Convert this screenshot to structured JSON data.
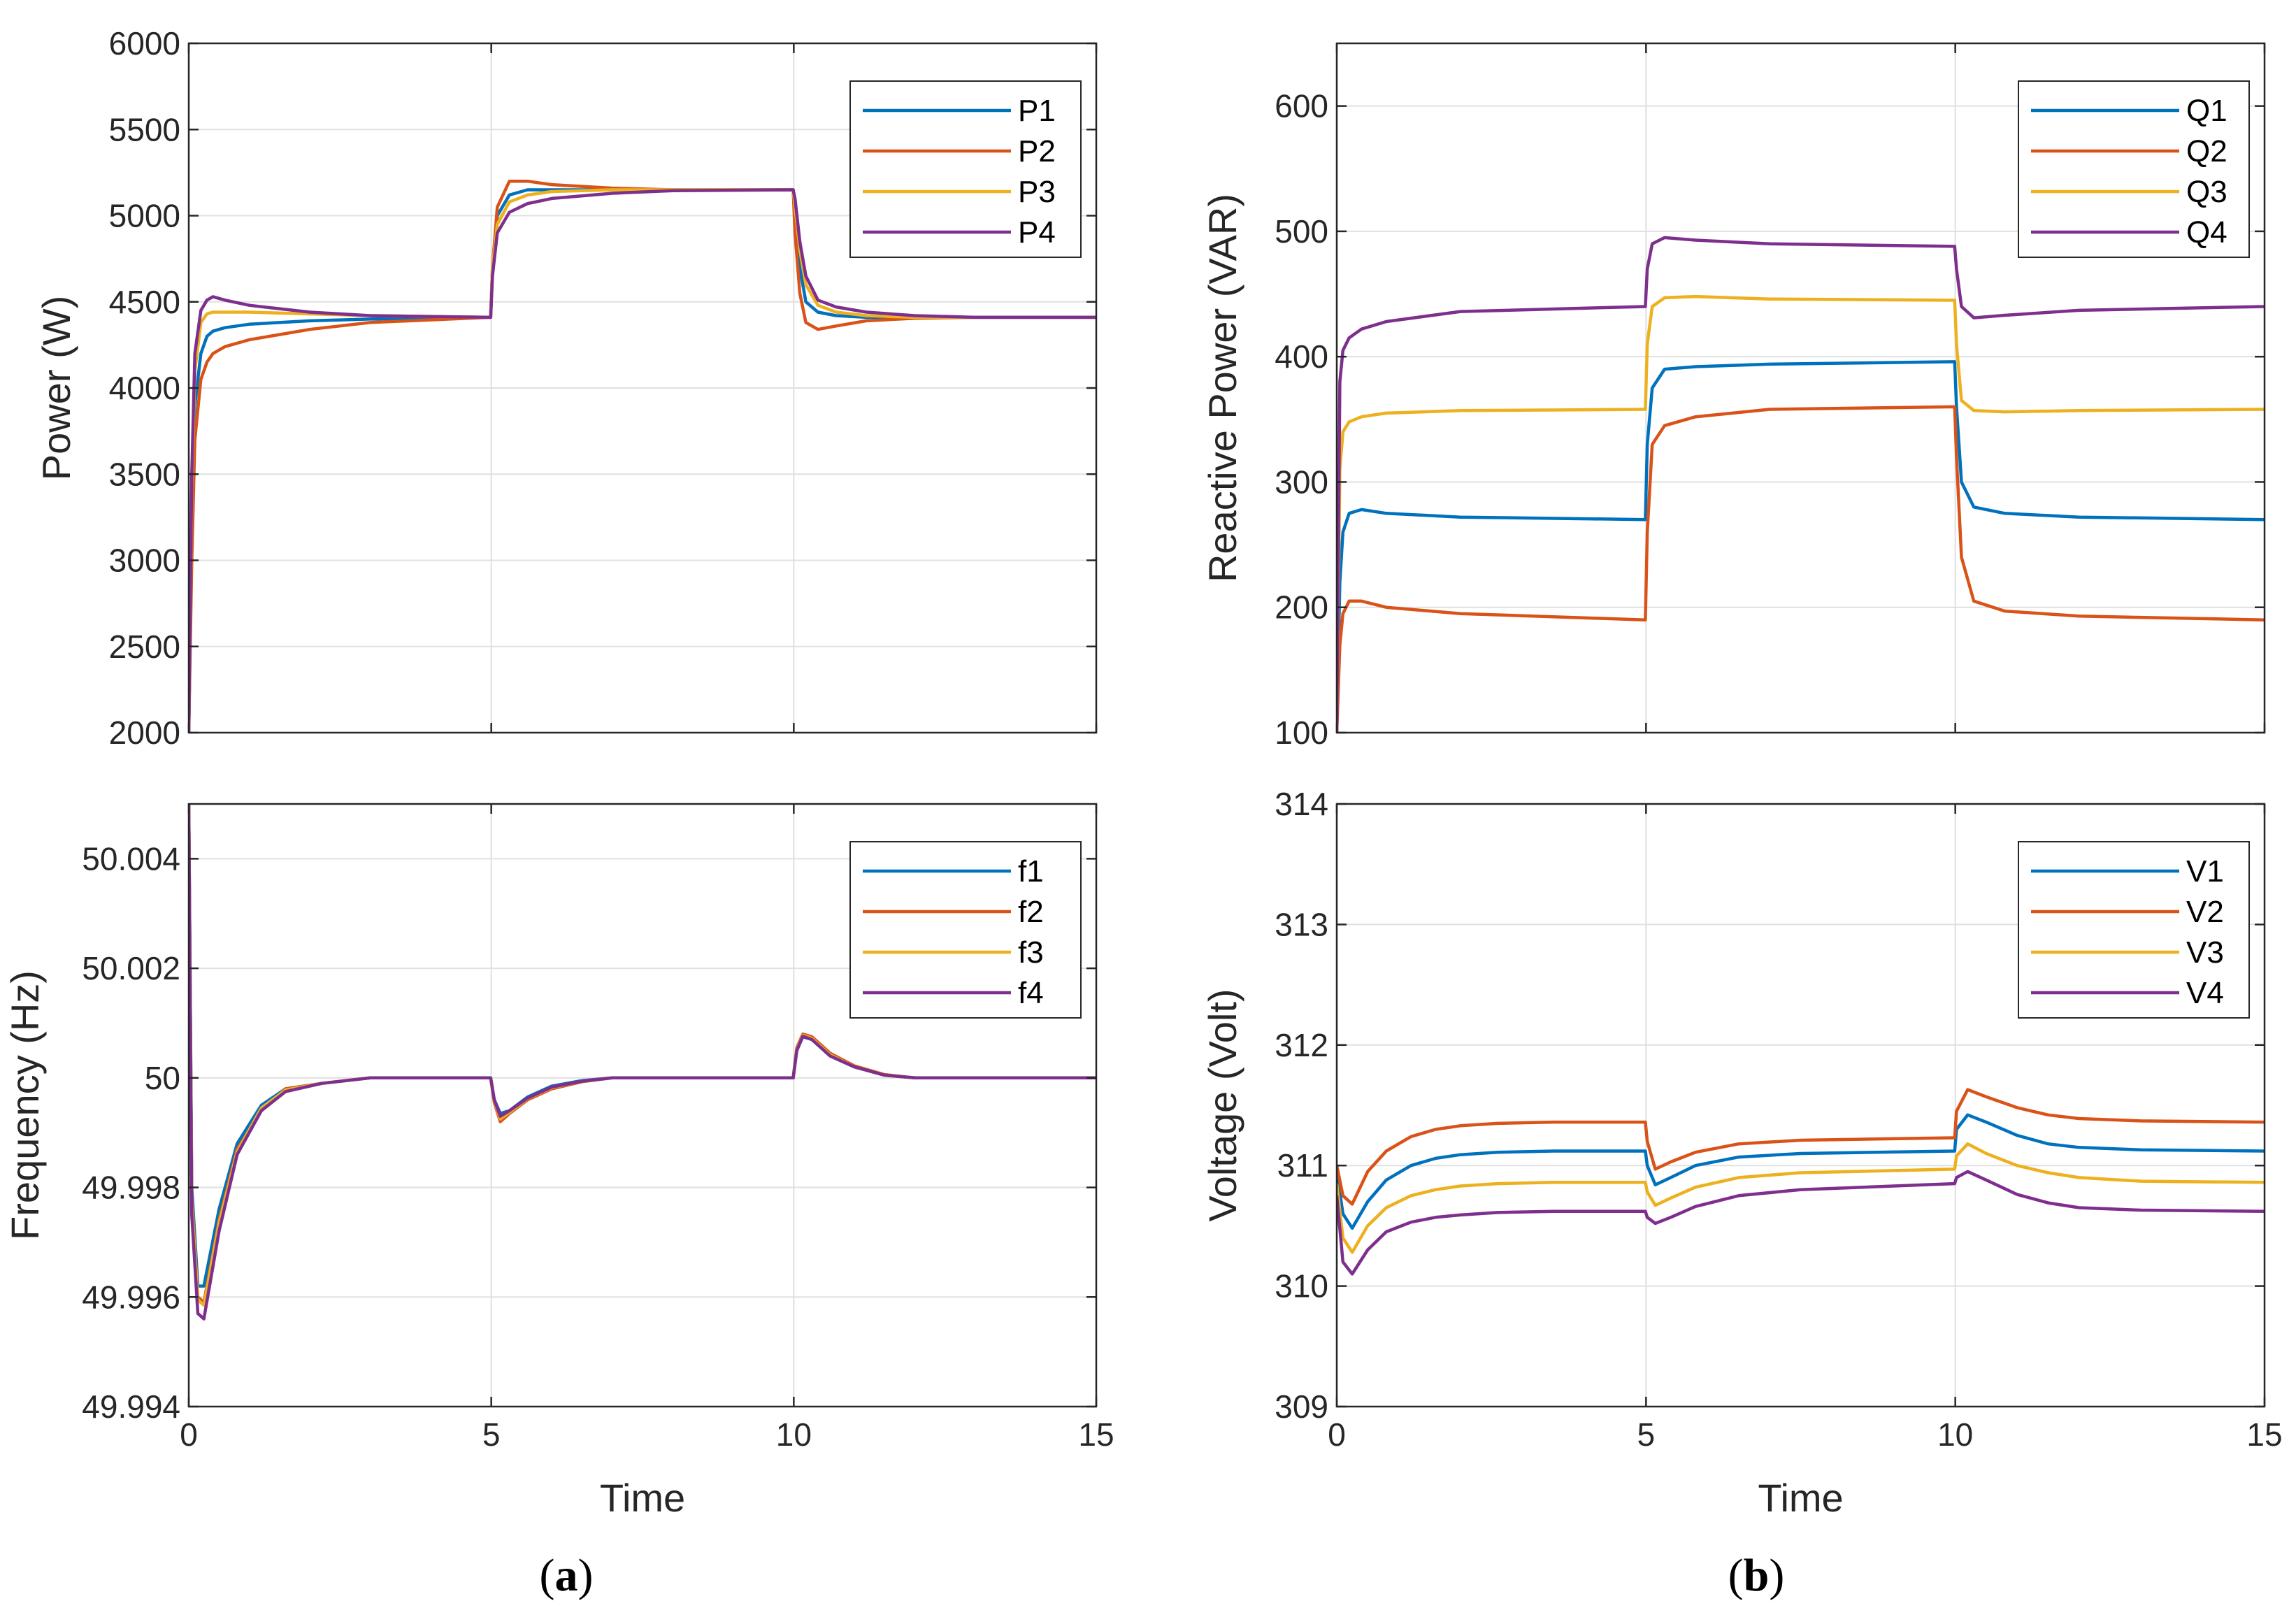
{
  "figure": {
    "captions": [
      "a",
      "b"
    ]
  },
  "colors": {
    "s1": "#0072BD",
    "s2": "#D95319",
    "s3": "#EDB120",
    "s4": "#7E2F8E",
    "grid": "#e0e0e0",
    "axis": "#262626"
  },
  "chart_data": [
    {
      "id": "power",
      "type": "line",
      "title": "",
      "xlabel": "",
      "ylabel": "Power (W)",
      "xlim": [
        0,
        15
      ],
      "ylim": [
        2000,
        6000
      ],
      "xticks": [
        0,
        5,
        10,
        15
      ],
      "yticks": [
        2000,
        2500,
        3000,
        3500,
        4000,
        4500,
        5000,
        5500,
        6000
      ],
      "ytick_labels": [
        "2000",
        "2500",
        "3000",
        "3500",
        "4000",
        "4500",
        "5000",
        "5500",
        "6000"
      ],
      "show_xtick_labels": false,
      "grid": true,
      "legend": "top-right",
      "series": [
        {
          "name": "P1",
          "x": [
            0,
            0.05,
            0.1,
            0.2,
            0.3,
            0.4,
            0.6,
            1.0,
            2.0,
            3.0,
            4.99,
            5.02,
            5.1,
            5.3,
            5.6,
            6.0,
            7.0,
            8.0,
            9.99,
            10.02,
            10.1,
            10.2,
            10.4,
            10.7,
            11.2,
            12.0,
            13.0,
            15.0
          ],
          "y": [
            2000,
            3200,
            3900,
            4200,
            4300,
            4330,
            4350,
            4370,
            4390,
            4400,
            4410,
            4700,
            5000,
            5120,
            5150,
            5150,
            5150,
            5150,
            5150,
            5000,
            4700,
            4500,
            4440,
            4420,
            4410,
            4410,
            4410,
            4410
          ]
        },
        {
          "name": "P2",
          "x": [
            0,
            0.05,
            0.1,
            0.2,
            0.3,
            0.4,
            0.6,
            1.0,
            2.0,
            3.0,
            4.99,
            5.02,
            5.1,
            5.3,
            5.6,
            6.0,
            7.0,
            8.0,
            9.99,
            10.02,
            10.1,
            10.2,
            10.4,
            10.7,
            11.2,
            12.0,
            13.0,
            15.0
          ],
          "y": [
            2000,
            3000,
            3700,
            4050,
            4150,
            4200,
            4240,
            4280,
            4340,
            4380,
            4410,
            4700,
            5050,
            5200,
            5200,
            5180,
            5160,
            5150,
            5150,
            4900,
            4550,
            4380,
            4340,
            4360,
            4390,
            4405,
            4410,
            4410
          ]
        },
        {
          "name": "P3",
          "x": [
            0,
            0.05,
            0.1,
            0.2,
            0.3,
            0.4,
            0.6,
            1.0,
            2.0,
            3.0,
            4.99,
            5.02,
            5.1,
            5.3,
            5.6,
            6.0,
            7.0,
            8.0,
            9.99,
            10.02,
            10.1,
            10.2,
            10.4,
            10.7,
            11.2,
            12.0,
            13.0,
            15.0
          ],
          "y": [
            2000,
            3400,
            4100,
            4380,
            4430,
            4440,
            4440,
            4440,
            4430,
            4420,
            4410,
            4700,
            4950,
            5080,
            5120,
            5140,
            5150,
            5150,
            5150,
            5050,
            4800,
            4600,
            4480,
            4440,
            4420,
            4410,
            4410,
            4410
          ]
        },
        {
          "name": "P4",
          "x": [
            0,
            0.05,
            0.1,
            0.2,
            0.3,
            0.4,
            0.6,
            1.0,
            2.0,
            3.0,
            4.99,
            5.02,
            5.1,
            5.3,
            5.6,
            6.0,
            7.0,
            8.0,
            9.99,
            10.02,
            10.1,
            10.2,
            10.4,
            10.7,
            11.2,
            12.0,
            13.0,
            15.0
          ],
          "y": [
            2000,
            3500,
            4200,
            4450,
            4510,
            4530,
            4510,
            4480,
            4440,
            4420,
            4410,
            4650,
            4900,
            5020,
            5070,
            5100,
            5130,
            5145,
            5150,
            5100,
            4850,
            4650,
            4510,
            4470,
            4440,
            4420,
            4410,
            4410
          ]
        }
      ]
    },
    {
      "id": "reactive",
      "type": "line",
      "title": "",
      "xlabel": "",
      "ylabel": "Reactive Power (VAR)",
      "xlim": [
        0,
        15
      ],
      "ylim": [
        100,
        650
      ],
      "xticks": [
        0,
        5,
        10,
        15
      ],
      "yticks": [
        100,
        200,
        300,
        400,
        500,
        600
      ],
      "ytick_labels": [
        "100",
        "200",
        "300",
        "400",
        "500",
        "600"
      ],
      "show_xtick_labels": false,
      "grid": true,
      "legend": "top-right",
      "series": [
        {
          "name": "Q1",
          "x": [
            0,
            0.05,
            0.1,
            0.2,
            0.4,
            0.8,
            2.0,
            4.99,
            5.02,
            5.1,
            5.3,
            5.8,
            7.0,
            9.99,
            10.02,
            10.1,
            10.3,
            10.8,
            12.0,
            15.0
          ],
          "y": [
            100,
            220,
            260,
            275,
            278,
            275,
            272,
            270,
            330,
            375,
            390,
            392,
            394,
            396,
            360,
            300,
            280,
            275,
            272,
            270
          ]
        },
        {
          "name": "Q2",
          "x": [
            0,
            0.05,
            0.1,
            0.2,
            0.4,
            0.8,
            2.0,
            4.99,
            5.02,
            5.1,
            5.3,
            5.8,
            7.0,
            9.99,
            10.02,
            10.1,
            10.3,
            10.8,
            12.0,
            15.0
          ],
          "y": [
            100,
            170,
            195,
            205,
            205,
            200,
            195,
            190,
            260,
            330,
            345,
            352,
            358,
            360,
            320,
            240,
            205,
            197,
            193,
            190
          ]
        },
        {
          "name": "Q3",
          "x": [
            0,
            0.05,
            0.1,
            0.2,
            0.4,
            0.8,
            2.0,
            4.99,
            5.02,
            5.1,
            5.3,
            5.8,
            7.0,
            9.99,
            10.02,
            10.1,
            10.3,
            10.8,
            12.0,
            15.0
          ],
          "y": [
            100,
            310,
            340,
            348,
            352,
            355,
            357,
            358,
            410,
            440,
            447,
            448,
            446,
            445,
            410,
            365,
            357,
            356,
            357,
            358
          ]
        },
        {
          "name": "Q4",
          "x": [
            0,
            0.05,
            0.1,
            0.2,
            0.4,
            0.8,
            2.0,
            4.99,
            5.02,
            5.1,
            5.3,
            5.8,
            7.0,
            9.99,
            10.02,
            10.1,
            10.3,
            10.8,
            12.0,
            15.0
          ],
          "y": [
            100,
            380,
            405,
            415,
            422,
            428,
            436,
            440,
            470,
            490,
            495,
            493,
            490,
            488,
            470,
            440,
            431,
            433,
            437,
            440
          ]
        }
      ]
    },
    {
      "id": "frequency",
      "type": "line",
      "title": "",
      "xlabel": "Time",
      "ylabel": "Frequency (Hz)",
      "xlim": [
        0,
        15
      ],
      "ylim": [
        49.994,
        50.005
      ],
      "xticks": [
        0,
        5,
        10,
        15
      ],
      "xtick_labels": [
        "0",
        "5",
        "10",
        "15"
      ],
      "yticks": [
        49.994,
        49.996,
        49.998,
        50,
        50.002,
        50.004
      ],
      "ytick_labels": [
        "49.994",
        "49.996",
        "49.998",
        "50",
        "50.002",
        "50.004"
      ],
      "show_xtick_labels": true,
      "grid": true,
      "legend": "top-right",
      "series": [
        {
          "name": "f1",
          "x": [
            0,
            0.05,
            0.15,
            0.25,
            0.5,
            0.8,
            1.2,
            1.6,
            2.2,
            3.0,
            4.99,
            5.05,
            5.15,
            5.3,
            5.6,
            6.0,
            6.5,
            7.0,
            8.0,
            9.99,
            10.05,
            10.15,
            10.3,
            10.6,
            11.0,
            11.5,
            12.0,
            15.0
          ],
          "y": [
            50.005,
            49.998,
            49.9962,
            49.9962,
            49.9976,
            49.9988,
            49.9995,
            49.9998,
            49.9999,
            50.0,
            50.0,
            49.9996,
            49.99935,
            49.9994,
            49.99965,
            49.99985,
            49.99995,
            50.0,
            50.0,
            50.0,
            50.0005,
            50.00075,
            50.0007,
            50.0004,
            50.0002,
            50.00005,
            50.0,
            50.0
          ]
        },
        {
          "name": "f2",
          "x": [
            0,
            0.05,
            0.15,
            0.25,
            0.5,
            0.8,
            1.2,
            1.6,
            2.2,
            3.0,
            4.99,
            5.05,
            5.15,
            5.3,
            5.6,
            6.0,
            6.5,
            7.0,
            8.0,
            9.99,
            10.05,
            10.15,
            10.3,
            10.6,
            11.0,
            11.5,
            12.0,
            15.0
          ],
          "y": [
            50.005,
            49.9978,
            49.996,
            49.9959,
            49.9974,
            49.9987,
            49.9994,
            49.9998,
            49.9999,
            50.0,
            50.0,
            49.99955,
            49.9992,
            49.99935,
            49.9996,
            49.9998,
            49.99993,
            50.0,
            50.0,
            50.0,
            50.00055,
            50.0008,
            50.00075,
            50.00045,
            50.00022,
            50.00006,
            50.0,
            50.0
          ]
        },
        {
          "name": "f3",
          "x": [
            0,
            0.05,
            0.15,
            0.25,
            0.5,
            0.8,
            1.2,
            1.6,
            2.2,
            3.0,
            4.99,
            5.05,
            5.15,
            5.3,
            5.6,
            6.0,
            6.5,
            7.0,
            8.0,
            9.99,
            10.05,
            10.15,
            10.3,
            10.6,
            11.0,
            11.5,
            12.0,
            15.0
          ],
          "y": [
            50.005,
            49.9977,
            49.99595,
            49.99585,
            49.99735,
            49.99865,
            49.99945,
            49.99978,
            49.9999,
            50.0,
            50.0,
            49.99958,
            49.99925,
            49.99937,
            49.99962,
            49.99982,
            49.99994,
            50.0,
            50.0,
            50.0,
            50.00052,
            50.00078,
            50.00072,
            50.00042,
            50.0002,
            50.00005,
            50.0,
            50.0
          ]
        },
        {
          "name": "f4",
          "x": [
            0,
            0.05,
            0.15,
            0.25,
            0.5,
            0.8,
            1.2,
            1.6,
            2.2,
            3.0,
            4.99,
            5.05,
            5.15,
            5.3,
            5.6,
            6.0,
            6.5,
            7.0,
            8.0,
            9.99,
            10.05,
            10.15,
            10.3,
            10.6,
            11.0,
            11.5,
            12.0,
            15.0
          ],
          "y": [
            50.005,
            49.9975,
            49.9957,
            49.9956,
            49.9972,
            49.9986,
            49.9994,
            49.99975,
            49.9999,
            50.0,
            50.0,
            49.9996,
            49.9993,
            49.9994,
            49.99963,
            49.99983,
            49.99994,
            50.0,
            50.0,
            50.0,
            50.0005,
            50.00076,
            50.0007,
            50.0004,
            50.0002,
            50.00005,
            50.0,
            50.0
          ]
        }
      ]
    },
    {
      "id": "voltage",
      "type": "line",
      "title": "",
      "xlabel": "Time",
      "ylabel": "Voltage (Volt)",
      "xlim": [
        0,
        15
      ],
      "ylim": [
        309,
        314
      ],
      "xticks": [
        0,
        5,
        10,
        15
      ],
      "xtick_labels": [
        "0",
        "5",
        "10",
        "15"
      ],
      "yticks": [
        309,
        310,
        311,
        312,
        313,
        314
      ],
      "ytick_labels": [
        "309",
        "310",
        "311",
        "312",
        "313",
        "314"
      ],
      "show_xtick_labels": true,
      "grid": true,
      "legend": "top-right",
      "series": [
        {
          "name": "V1",
          "x": [
            0,
            0.1,
            0.25,
            0.5,
            0.8,
            1.2,
            1.6,
            2.0,
            2.6,
            3.5,
            4.99,
            5.02,
            5.15,
            5.4,
            5.8,
            6.5,
            7.5,
            9.99,
            10.02,
            10.2,
            10.5,
            11.0,
            11.5,
            12.0,
            13.0,
            15.0
          ],
          "y": [
            310.95,
            310.6,
            310.48,
            310.7,
            310.88,
            311.0,
            311.06,
            311.09,
            311.11,
            311.12,
            311.12,
            311.0,
            310.84,
            310.9,
            311.0,
            311.07,
            311.1,
            311.12,
            311.3,
            311.42,
            311.36,
            311.25,
            311.18,
            311.15,
            311.13,
            311.12
          ]
        },
        {
          "name": "V2",
          "x": [
            0,
            0.1,
            0.25,
            0.5,
            0.8,
            1.2,
            1.6,
            2.0,
            2.6,
            3.5,
            4.99,
            5.02,
            5.15,
            5.4,
            5.8,
            6.5,
            7.5,
            9.99,
            10.02,
            10.2,
            10.5,
            11.0,
            11.5,
            12.0,
            13.0,
            15.0
          ],
          "y": [
            311.0,
            310.75,
            310.68,
            310.95,
            311.12,
            311.24,
            311.3,
            311.33,
            311.35,
            311.36,
            311.36,
            311.2,
            310.97,
            311.03,
            311.11,
            311.18,
            311.21,
            311.23,
            311.45,
            311.63,
            311.57,
            311.48,
            311.42,
            311.39,
            311.37,
            311.36
          ]
        },
        {
          "name": "V3",
          "x": [
            0,
            0.1,
            0.25,
            0.5,
            0.8,
            1.2,
            1.6,
            2.0,
            2.6,
            3.5,
            4.99,
            5.02,
            5.15,
            5.4,
            5.8,
            6.5,
            7.5,
            9.99,
            10.02,
            10.2,
            10.5,
            11.0,
            11.5,
            12.0,
            13.0,
            15.0
          ],
          "y": [
            310.85,
            310.4,
            310.28,
            310.5,
            310.65,
            310.75,
            310.8,
            310.83,
            310.85,
            310.86,
            310.86,
            310.78,
            310.67,
            310.73,
            310.82,
            310.9,
            310.94,
            310.97,
            311.08,
            311.18,
            311.1,
            311.0,
            310.94,
            310.9,
            310.87,
            310.86
          ]
        },
        {
          "name": "V4",
          "x": [
            0,
            0.1,
            0.25,
            0.5,
            0.8,
            1.2,
            1.6,
            2.0,
            2.6,
            3.5,
            4.99,
            5.02,
            5.15,
            5.4,
            5.8,
            6.5,
            7.5,
            9.99,
            10.02,
            10.2,
            10.5,
            11.0,
            11.5,
            12.0,
            13.0,
            15.0
          ],
          "y": [
            310.75,
            310.2,
            310.1,
            310.3,
            310.45,
            310.53,
            310.57,
            310.59,
            310.61,
            310.62,
            310.62,
            310.57,
            310.52,
            310.57,
            310.66,
            310.75,
            310.8,
            310.85,
            310.9,
            310.95,
            310.88,
            310.76,
            310.69,
            310.65,
            310.63,
            310.62
          ]
        }
      ]
    }
  ]
}
